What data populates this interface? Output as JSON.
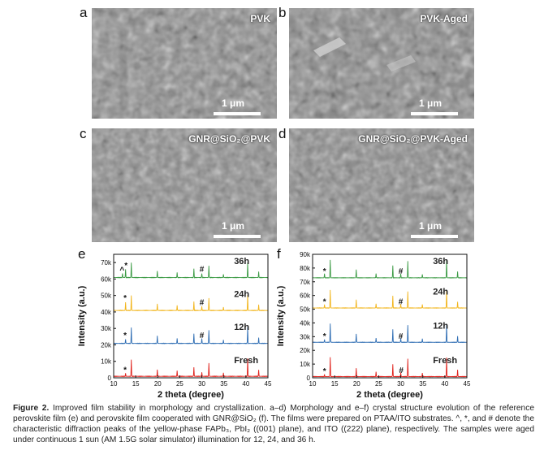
{
  "panels": [
    {
      "letter": "a",
      "label": "PVK",
      "scale": "1 μm"
    },
    {
      "letter": "b",
      "label": "PVK-Aged",
      "scale": "1 μm"
    },
    {
      "letter": "c",
      "label": "GNR@SiO₂@PVK",
      "scale": "1 μm"
    },
    {
      "letter": "d",
      "label": "GNR@SiO₂@PVK-Aged",
      "scale": "1 μm"
    }
  ],
  "chart_data": [
    {
      "letter": "e",
      "type": "line",
      "xlabel": "2 theta (degree)",
      "ylabel": "Intensity (a.u.)",
      "xlim": [
        10,
        45
      ],
      "ylim": [
        0,
        75000
      ],
      "xticks": [
        10,
        15,
        20,
        25,
        30,
        35,
        40,
        45
      ],
      "yticks": [
        "0",
        "10k",
        "20k",
        "30k",
        "40k",
        "50k",
        "60k",
        "70k"
      ],
      "series": [
        {
          "name": "Fresh",
          "color": "#e0221c",
          "offset": 0,
          "peaks": [
            [
              12.7,
              1800
            ],
            [
              14.0,
              10000
            ],
            [
              19.9,
              4000
            ],
            [
              24.4,
              3500
            ],
            [
              28.2,
              5500
            ],
            [
              30.0,
              2500
            ],
            [
              31.6,
              8000
            ],
            [
              34.9,
              2000
            ],
            [
              40.4,
              11000
            ],
            [
              42.9,
              4000
            ]
          ]
        },
        {
          "name": "12h",
          "color": "#2e6db3",
          "offset": 20000,
          "peaks": [
            [
              12.7,
              2500
            ],
            [
              14.0,
              9500
            ],
            [
              19.9,
              4500
            ],
            [
              24.4,
              3000
            ],
            [
              28.2,
              6000
            ],
            [
              30.0,
              3000
            ],
            [
              31.6,
              8000
            ],
            [
              34.9,
              2000
            ],
            [
              40.4,
              10000
            ],
            [
              42.9,
              3500
            ]
          ]
        },
        {
          "name": "24h",
          "color": "#f2b51b",
          "offset": 40000,
          "peaks": [
            [
              12.7,
              5000
            ],
            [
              14.0,
              9000
            ],
            [
              19.9,
              4000
            ],
            [
              24.4,
              3000
            ],
            [
              28.2,
              5500
            ],
            [
              30.0,
              2500
            ],
            [
              31.6,
              7500
            ],
            [
              34.9,
              2000
            ],
            [
              40.4,
              9500
            ],
            [
              42.9,
              3500
            ]
          ]
        },
        {
          "name": "36h",
          "color": "#3a9a43",
          "offset": 60000,
          "peaks": [
            [
              12.0,
              2500
            ],
            [
              12.7,
              5000
            ],
            [
              14.0,
              9000
            ],
            [
              19.9,
              4000
            ],
            [
              24.4,
              3000
            ],
            [
              28.2,
              5500
            ],
            [
              30.0,
              2500
            ],
            [
              31.6,
              7000
            ],
            [
              34.9,
              2000
            ],
            [
              40.4,
              9000
            ],
            [
              42.9,
              3500
            ]
          ]
        }
      ],
      "annotations": [
        {
          "text": "*",
          "x": 12.6,
          "y": 3200
        },
        {
          "text": "*",
          "x": 12.6,
          "y": 24200
        },
        {
          "text": "#",
          "x": 30.0,
          "y": 24200
        },
        {
          "text": "*",
          "x": 12.6,
          "y": 46800
        },
        {
          "text": "#",
          "x": 30.0,
          "y": 44200
        },
        {
          "text": "^",
          "x": 11.9,
          "y": 63800
        },
        {
          "text": "*",
          "x": 12.8,
          "y": 66600
        },
        {
          "text": "#",
          "x": 30.0,
          "y": 64300
        }
      ]
    },
    {
      "letter": "f",
      "type": "line",
      "xlabel": "2 theta (degree)",
      "ylabel": "Intensity (a.u.)",
      "xlim": [
        10,
        45
      ],
      "ylim": [
        0,
        90000
      ],
      "xticks": [
        10,
        15,
        20,
        25,
        30,
        35,
        40,
        45
      ],
      "yticks": [
        "0",
        "10k",
        "20k",
        "30k",
        "40k",
        "50k",
        "60k",
        "70k",
        "80k",
        "90k"
      ],
      "series": [
        {
          "name": "Fresh",
          "color": "#e0221c",
          "offset": 0,
          "peaks": [
            [
              12.7,
              1500
            ],
            [
              14.0,
              14000
            ],
            [
              19.9,
              6000
            ],
            [
              24.4,
              3500
            ],
            [
              28.2,
              9000
            ],
            [
              30.0,
              3000
            ],
            [
              31.6,
              13000
            ],
            [
              34.9,
              2500
            ],
            [
              40.4,
              14000
            ],
            [
              42.9,
              5000
            ]
          ]
        },
        {
          "name": "12h",
          "color": "#2e6db3",
          "offset": 25000,
          "peaks": [
            [
              12.7,
              2000
            ],
            [
              14.0,
              13500
            ],
            [
              19.9,
              6000
            ],
            [
              24.4,
              3000
            ],
            [
              28.2,
              9500
            ],
            [
              30.0,
              3000
            ],
            [
              31.6,
              12500
            ],
            [
              34.9,
              2500
            ],
            [
              40.4,
              13500
            ],
            [
              42.9,
              4500
            ]
          ]
        },
        {
          "name": "24h",
          "color": "#f2b51b",
          "offset": 50000,
          "peaks": [
            [
              12.7,
              2500
            ],
            [
              14.0,
              13000
            ],
            [
              19.9,
              6000
            ],
            [
              24.4,
              3000
            ],
            [
              28.2,
              9000
            ],
            [
              30.0,
              3000
            ],
            [
              31.6,
              12000
            ],
            [
              34.9,
              2500
            ],
            [
              40.4,
              13000
            ],
            [
              42.9,
              4500
            ]
          ]
        },
        {
          "name": "36h",
          "color": "#3a9a43",
          "offset": 72000,
          "peaks": [
            [
              12.7,
              3000
            ],
            [
              14.0,
              13000
            ],
            [
              19.9,
              6000
            ],
            [
              24.4,
              3000
            ],
            [
              28.2,
              9000
            ],
            [
              30.0,
              3000
            ],
            [
              31.6,
              12000
            ],
            [
              34.9,
              2500
            ],
            [
              40.4,
              13000
            ],
            [
              42.9,
              4500
            ]
          ]
        }
      ],
      "annotations": [
        {
          "text": "*",
          "x": 12.7,
          "y": 3000
        },
        {
          "text": "#",
          "x": 30.1,
          "y": 3500
        },
        {
          "text": "*",
          "x": 12.7,
          "y": 28500
        },
        {
          "text": "#",
          "x": 30.0,
          "y": 28500
        },
        {
          "text": "*",
          "x": 12.7,
          "y": 53500
        },
        {
          "text": "#",
          "x": 30.0,
          "y": 53500
        },
        {
          "text": "*",
          "x": 12.7,
          "y": 75800
        },
        {
          "text": "#",
          "x": 30.0,
          "y": 75800
        }
      ]
    }
  ],
  "caption": {
    "label": "Figure 2.",
    "text": "Improved film stability in morphology and crystallization. a–d) Morphology and e–f) crystal structure evolution of the reference perovskite film (e) and perovskite film cooperated with GNR@SiO₂ (f). The films were prepared on PTAA/ITO substrates. ^, *, and # denote the characteristic diffraction peaks of the yellow-phase FAPb₃, PbI₂ ((001) plane), and ITO ((222) plane), respectively. The samples were aged under continuous 1 sun (AM 1.5G solar simulator) illumination for 12, 24, and 36 h."
  }
}
